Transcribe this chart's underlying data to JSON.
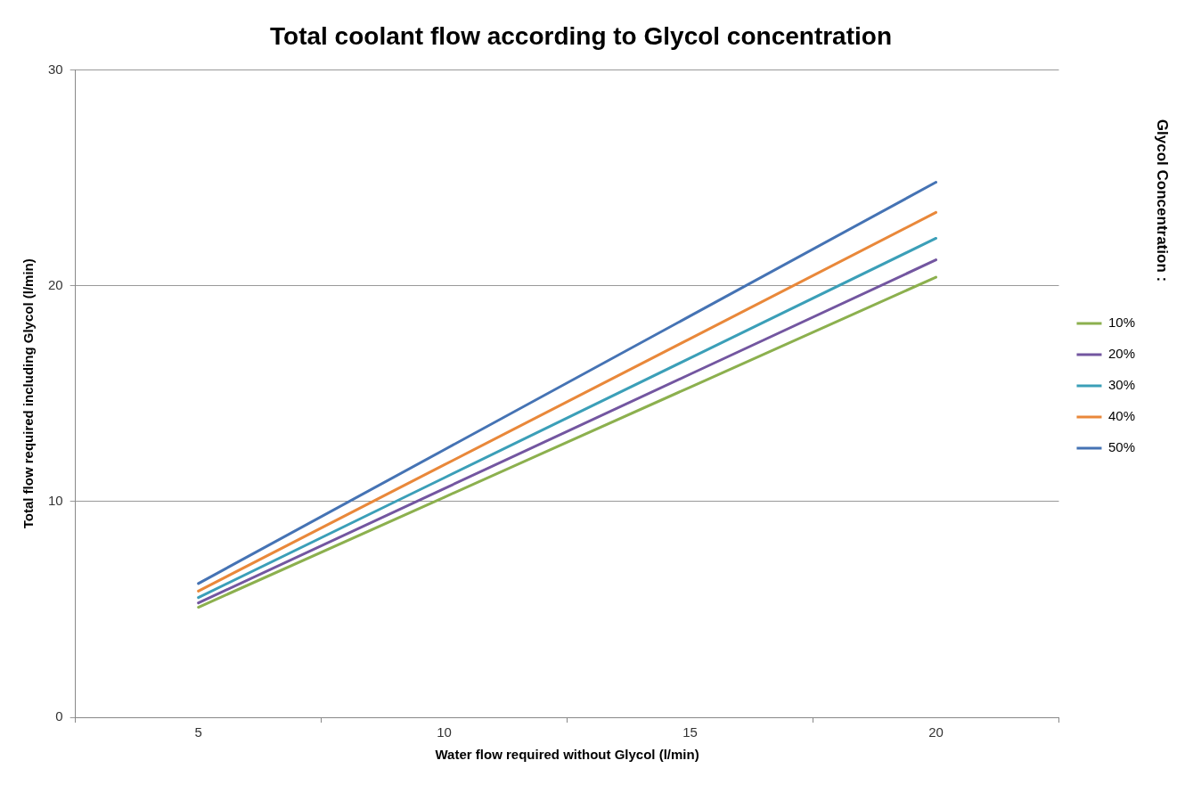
{
  "chart_data": {
    "type": "line",
    "title": "Total coolant flow according to Glycol concentration",
    "xlabel": "Water flow required without Glycol (l/min)",
    "ylabel": "Total flow required including Glycol (l/min)",
    "legend_title": "Glycol Concentration :",
    "categories": [
      "5",
      "10",
      "15",
      "20"
    ],
    "series": [
      {
        "name": "10%",
        "color": "#8cb04e",
        "values": [
          5.1,
          10.2,
          15.3,
          20.4
        ]
      },
      {
        "name": "20%",
        "color": "#7356a0",
        "values": [
          5.3,
          10.6,
          15.9,
          21.2
        ]
      },
      {
        "name": "30%",
        "color": "#3b9fb8",
        "values": [
          5.55,
          11.1,
          16.65,
          22.2
        ]
      },
      {
        "name": "40%",
        "color": "#e9883a",
        "values": [
          5.85,
          11.7,
          17.55,
          23.4
        ]
      },
      {
        "name": "50%",
        "color": "#4573b4",
        "values": [
          6.2,
          12.4,
          18.6,
          24.8
        ]
      }
    ],
    "ylim": [
      0,
      30
    ],
    "yticks": [
      0,
      10,
      20,
      30
    ],
    "grid": "y",
    "legend": "right",
    "marker": "none",
    "line_style": "solid"
  }
}
